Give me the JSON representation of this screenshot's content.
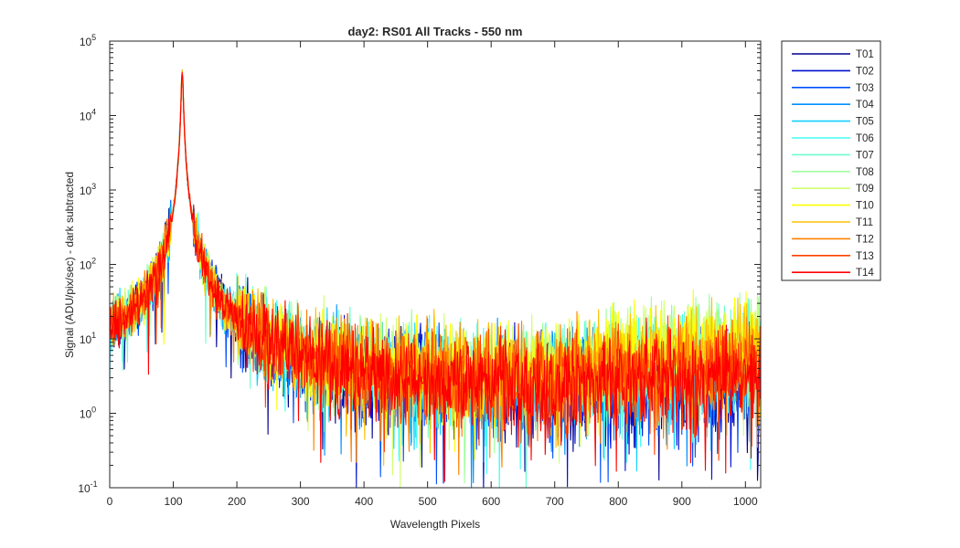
{
  "chart_data": {
    "type": "line",
    "title": "day2: RS01  All Tracks - 550 nm",
    "xlabel": "Wavelength Pixels",
    "ylabel": "Signal (ADU/pix/sec) - dark subtracted",
    "xlim": [
      0,
      1024
    ],
    "ylim": [
      0.1,
      100000
    ],
    "yscale": "log",
    "grid": false,
    "legend_position": "outside-top-right",
    "x_ticks": [
      0,
      100,
      200,
      300,
      400,
      500,
      600,
      700,
      800,
      900,
      1000
    ],
    "y_ticks": [
      {
        "value": 0.1,
        "base": "10",
        "exp": "-1"
      },
      {
        "value": 1,
        "base": "10",
        "exp": "0"
      },
      {
        "value": 10,
        "base": "10",
        "exp": "1"
      },
      {
        "value": 100,
        "base": "10",
        "exp": "2"
      },
      {
        "value": 1000,
        "base": "10",
        "exp": "3"
      },
      {
        "value": 10000,
        "base": "10",
        "exp": "4"
      },
      {
        "value": 100000,
        "base": "10",
        "exp": "5"
      }
    ],
    "peak": {
      "x": 114,
      "y": 38000
    },
    "series": [
      {
        "name": "T01",
        "color": "#00008f",
        "baseline_edge": 5,
        "baseline_floor": 2.2,
        "far_end": 3
      },
      {
        "name": "T02",
        "color": "#0010d0",
        "baseline_edge": 5.5,
        "baseline_floor": 2.3,
        "far_end": 3.2
      },
      {
        "name": "T03",
        "color": "#0050ff",
        "baseline_edge": 6,
        "baseline_floor": 2.4,
        "far_end": 3.5
      },
      {
        "name": "T04",
        "color": "#0090ff",
        "baseline_edge": 6.5,
        "baseline_floor": 2.5,
        "far_end": 4
      },
      {
        "name": "T05",
        "color": "#10d0ff",
        "baseline_edge": 7,
        "baseline_floor": 2.7,
        "far_end": 4.5
      },
      {
        "name": "T06",
        "color": "#40ffef",
        "baseline_edge": 7.5,
        "baseline_floor": 3,
        "far_end": 6
      },
      {
        "name": "T07",
        "color": "#6fffcf",
        "baseline_edge": 8,
        "baseline_floor": 3.3,
        "far_end": 8
      },
      {
        "name": "T08",
        "color": "#9fff9f",
        "baseline_edge": 9,
        "baseline_floor": 3.6,
        "far_end": 10
      },
      {
        "name": "T09",
        "color": "#cfff6f",
        "baseline_edge": 9.5,
        "baseline_floor": 3.8,
        "far_end": 11
      },
      {
        "name": "T10",
        "color": "#ffff00",
        "baseline_edge": 9,
        "baseline_floor": 3.7,
        "far_end": 10
      },
      {
        "name": "T11",
        "color": "#ffc000",
        "baseline_edge": 8,
        "baseline_floor": 3.4,
        "far_end": 8
      },
      {
        "name": "T12",
        "color": "#ff8000",
        "baseline_edge": 7,
        "baseline_floor": 3,
        "far_end": 5
      },
      {
        "name": "T13",
        "color": "#ff4000",
        "baseline_edge": 6,
        "baseline_floor": 2.6,
        "far_end": 4
      },
      {
        "name": "T14",
        "color": "#ff0000",
        "baseline_edge": 5.5,
        "baseline_floor": 2.4,
        "far_end": 3.5
      }
    ]
  }
}
